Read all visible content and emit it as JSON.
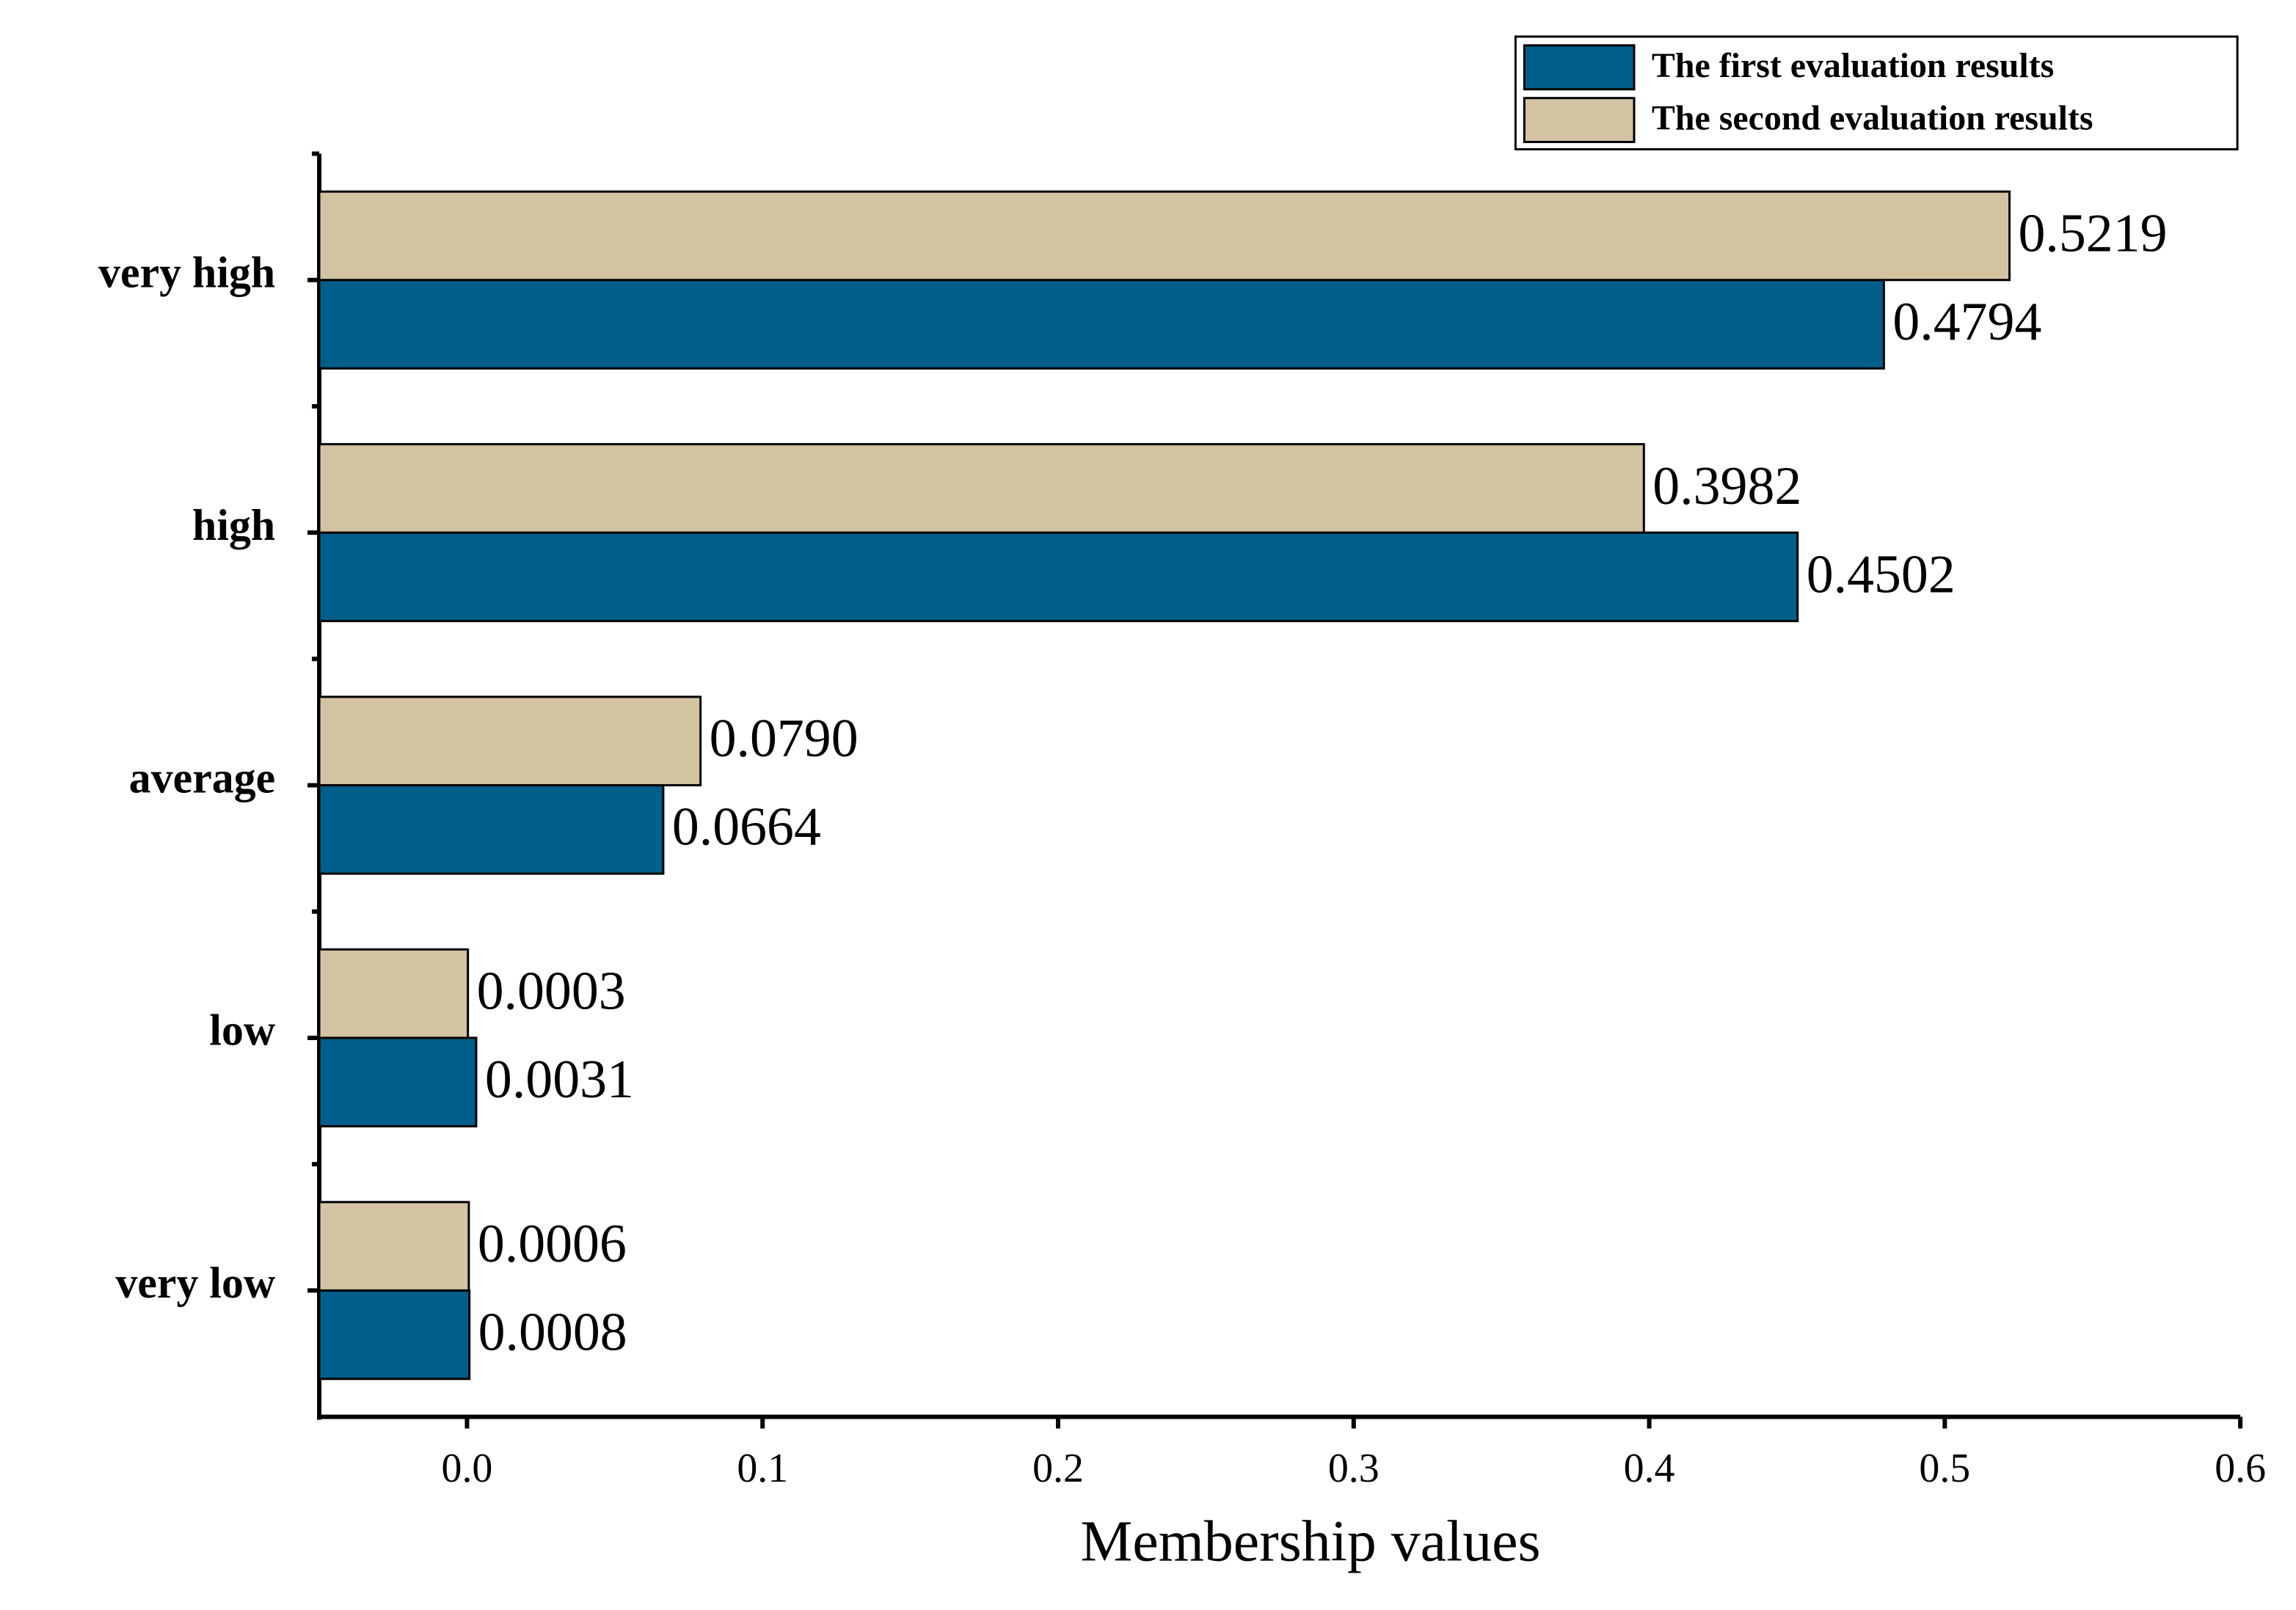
{
  "chart_data": {
    "type": "bar",
    "orientation": "horizontal",
    "x_label": "Membership values",
    "categories": [
      "very high",
      "high",
      "average",
      "low",
      "very low"
    ],
    "series": [
      {
        "name": "The first evaluation results",
        "color": "#005f8a",
        "values": [
          0.4794,
          0.4502,
          0.0664,
          0.0031,
          0.0008
        ],
        "value_labels": [
          "0.4794",
          "0.4502",
          "0.0664",
          "0.0031",
          "0.0008"
        ]
      },
      {
        "name": "The second evaluation results",
        "color": "#d3c3a2",
        "values": [
          0.5219,
          0.3982,
          0.079,
          0.0003,
          0.0006
        ],
        "value_labels": [
          "0.5219",
          "0.3982",
          "0.0790",
          "0.0003",
          "0.0006"
        ]
      }
    ],
    "xlim": [
      -0.05,
      0.6
    ],
    "xticks": [
      {
        "value": 0,
        "label": "0.0"
      },
      0.1,
      0.2,
      0.3,
      0.4,
      0.5,
      0.6
    ],
    "legend": "upper right",
    "grid": false
  }
}
